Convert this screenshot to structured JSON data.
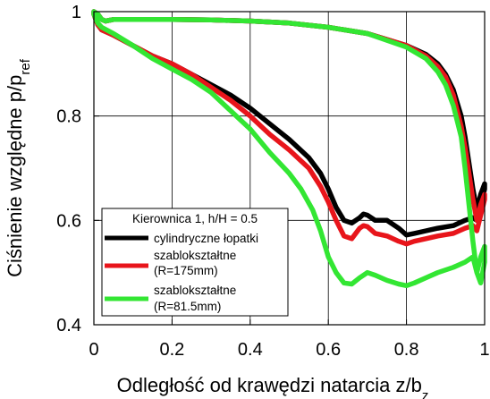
{
  "chart_data": {
    "type": "line",
    "xlabel": "Odległość od krawędzi natarcia z/b",
    "xlabel_sub": "z",
    "ylabel": "Ciśnienie względne p/p",
    "ylabel_sub": "ref",
    "xlim": [
      0,
      1
    ],
    "ylim": [
      0.4,
      1.0
    ],
    "xticks": [
      0,
      0.2,
      0.4,
      0.6,
      0.8,
      1
    ],
    "xtick_labels": [
      "0",
      "0.2",
      "0.4",
      "0.6",
      "0.8",
      "1"
    ],
    "yticks": [
      0.4,
      0.6,
      0.8,
      1.0
    ],
    "ytick_labels": [
      "0.4",
      "0.6",
      "0.8",
      "1"
    ],
    "grid": true,
    "legend_title": "Kierownica 1, h/H = 0.5",
    "legend_position": "bottom-left",
    "series": [
      {
        "name": "cylindryczne łopatki",
        "color": "#000000",
        "lower": [
          [
            0.0,
            0.995
          ],
          [
            0.01,
            0.975
          ],
          [
            0.02,
            0.965
          ],
          [
            0.05,
            0.955
          ],
          [
            0.1,
            0.935
          ],
          [
            0.15,
            0.915
          ],
          [
            0.2,
            0.9
          ],
          [
            0.25,
            0.88
          ],
          [
            0.3,
            0.86
          ],
          [
            0.35,
            0.84
          ],
          [
            0.4,
            0.815
          ],
          [
            0.45,
            0.785
          ],
          [
            0.5,
            0.755
          ],
          [
            0.55,
            0.72
          ],
          [
            0.58,
            0.69
          ],
          [
            0.6,
            0.66
          ],
          [
            0.62,
            0.625
          ],
          [
            0.64,
            0.6
          ],
          [
            0.66,
            0.595
          ],
          [
            0.68,
            0.605
          ],
          [
            0.69,
            0.612
          ],
          [
            0.7,
            0.61
          ],
          [
            0.72,
            0.6
          ],
          [
            0.75,
            0.6
          ],
          [
            0.78,
            0.585
          ],
          [
            0.8,
            0.572
          ],
          [
            0.82,
            0.575
          ],
          [
            0.85,
            0.58
          ],
          [
            0.88,
            0.585
          ],
          [
            0.92,
            0.59
          ],
          [
            0.95,
            0.6
          ],
          [
            0.97,
            0.605
          ],
          [
            0.98,
            0.6
          ],
          [
            0.99,
            0.63
          ],
          [
            1.0,
            0.66
          ]
        ],
        "upper": [
          [
            0.0,
            1.0
          ],
          [
            0.01,
            0.995
          ],
          [
            0.02,
            0.985
          ],
          [
            0.03,
            0.982
          ],
          [
            0.05,
            0.985
          ],
          [
            0.1,
            0.985
          ],
          [
            0.2,
            0.985
          ],
          [
            0.3,
            0.984
          ],
          [
            0.4,
            0.982
          ],
          [
            0.5,
            0.978
          ],
          [
            0.6,
            0.97
          ],
          [
            0.7,
            0.958
          ],
          [
            0.8,
            0.935
          ],
          [
            0.85,
            0.918
          ],
          [
            0.88,
            0.9
          ],
          [
            0.9,
            0.88
          ],
          [
            0.92,
            0.85
          ],
          [
            0.94,
            0.8
          ],
          [
            0.95,
            0.76
          ],
          [
            0.96,
            0.71
          ],
          [
            0.97,
            0.66
          ],
          [
            0.98,
            0.62
          ],
          [
            0.99,
            0.65
          ],
          [
            1.0,
            0.67
          ]
        ]
      },
      {
        "name": "szablokształtne (R=175mm)",
        "color": "#e8151b",
        "lower": [
          [
            0.0,
            0.995
          ],
          [
            0.01,
            0.975
          ],
          [
            0.02,
            0.965
          ],
          [
            0.05,
            0.955
          ],
          [
            0.1,
            0.935
          ],
          [
            0.15,
            0.915
          ],
          [
            0.2,
            0.9
          ],
          [
            0.25,
            0.88
          ],
          [
            0.3,
            0.855
          ],
          [
            0.35,
            0.83
          ],
          [
            0.4,
            0.8
          ],
          [
            0.45,
            0.765
          ],
          [
            0.5,
            0.735
          ],
          [
            0.55,
            0.7
          ],
          [
            0.58,
            0.665
          ],
          [
            0.6,
            0.635
          ],
          [
            0.62,
            0.6
          ],
          [
            0.64,
            0.57
          ],
          [
            0.66,
            0.565
          ],
          [
            0.68,
            0.585
          ],
          [
            0.69,
            0.59
          ],
          [
            0.7,
            0.588
          ],
          [
            0.72,
            0.575
          ],
          [
            0.75,
            0.57
          ],
          [
            0.78,
            0.56
          ],
          [
            0.8,
            0.555
          ],
          [
            0.82,
            0.56
          ],
          [
            0.85,
            0.565
          ],
          [
            0.88,
            0.57
          ],
          [
            0.92,
            0.575
          ],
          [
            0.95,
            0.585
          ],
          [
            0.97,
            0.59
          ],
          [
            0.98,
            0.58
          ],
          [
            0.99,
            0.61
          ],
          [
            1.0,
            0.64
          ]
        ],
        "upper": [
          [
            0.0,
            1.0
          ],
          [
            0.01,
            0.995
          ],
          [
            0.02,
            0.985
          ],
          [
            0.03,
            0.982
          ],
          [
            0.05,
            0.985
          ],
          [
            0.1,
            0.985
          ],
          [
            0.2,
            0.985
          ],
          [
            0.3,
            0.984
          ],
          [
            0.4,
            0.982
          ],
          [
            0.5,
            0.978
          ],
          [
            0.6,
            0.97
          ],
          [
            0.7,
            0.958
          ],
          [
            0.8,
            0.935
          ],
          [
            0.85,
            0.915
          ],
          [
            0.88,
            0.895
          ],
          [
            0.9,
            0.875
          ],
          [
            0.92,
            0.84
          ],
          [
            0.94,
            0.78
          ],
          [
            0.95,
            0.74
          ],
          [
            0.96,
            0.69
          ],
          [
            0.97,
            0.64
          ],
          [
            0.98,
            0.6
          ],
          [
            0.99,
            0.63
          ],
          [
            1.0,
            0.65
          ]
        ]
      },
      {
        "name": "szablokształtne (R=81.5mm)",
        "color": "#33e633",
        "lower": [
          [
            0.0,
            0.995
          ],
          [
            0.01,
            0.978
          ],
          [
            0.02,
            0.97
          ],
          [
            0.05,
            0.958
          ],
          [
            0.1,
            0.935
          ],
          [
            0.15,
            0.91
          ],
          [
            0.2,
            0.89
          ],
          [
            0.25,
            0.87
          ],
          [
            0.3,
            0.845
          ],
          [
            0.35,
            0.81
          ],
          [
            0.4,
            0.775
          ],
          [
            0.45,
            0.73
          ],
          [
            0.5,
            0.69
          ],
          [
            0.53,
            0.66
          ],
          [
            0.56,
            0.62
          ],
          [
            0.58,
            0.58
          ],
          [
            0.6,
            0.53
          ],
          [
            0.62,
            0.5
          ],
          [
            0.64,
            0.48
          ],
          [
            0.66,
            0.478
          ],
          [
            0.68,
            0.49
          ],
          [
            0.7,
            0.5
          ],
          [
            0.72,
            0.495
          ],
          [
            0.75,
            0.485
          ],
          [
            0.78,
            0.478
          ],
          [
            0.8,
            0.475
          ],
          [
            0.82,
            0.48
          ],
          [
            0.85,
            0.49
          ],
          [
            0.88,
            0.5
          ],
          [
            0.92,
            0.51
          ],
          [
            0.95,
            0.52
          ],
          [
            0.97,
            0.53
          ],
          [
            0.98,
            0.5
          ],
          [
            0.99,
            0.48
          ],
          [
            1.0,
            0.52
          ]
        ],
        "upper": [
          [
            0.0,
            1.0
          ],
          [
            0.01,
            0.995
          ],
          [
            0.02,
            0.985
          ],
          [
            0.03,
            0.982
          ],
          [
            0.05,
            0.985
          ],
          [
            0.1,
            0.985
          ],
          [
            0.2,
            0.985
          ],
          [
            0.3,
            0.984
          ],
          [
            0.4,
            0.982
          ],
          [
            0.5,
            0.978
          ],
          [
            0.6,
            0.97
          ],
          [
            0.7,
            0.958
          ],
          [
            0.8,
            0.932
          ],
          [
            0.85,
            0.91
          ],
          [
            0.88,
            0.885
          ],
          [
            0.9,
            0.86
          ],
          [
            0.92,
            0.82
          ],
          [
            0.94,
            0.76
          ],
          [
            0.95,
            0.7
          ],
          [
            0.96,
            0.63
          ],
          [
            0.97,
            0.56
          ],
          [
            0.98,
            0.5
          ],
          [
            0.99,
            0.53
          ],
          [
            1.0,
            0.55
          ]
        ]
      }
    ]
  }
}
